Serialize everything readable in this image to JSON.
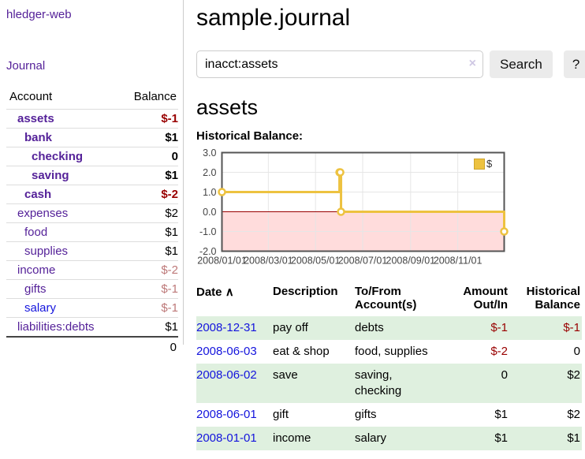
{
  "sidebar": {
    "app_title": "hledger-web",
    "journal_label": "Journal",
    "accounts_table": {
      "headers": {
        "account": "Account",
        "balance": "Balance"
      },
      "rows": [
        {
          "name": "assets",
          "indent": 1,
          "bold": true,
          "link_style": "purple",
          "balance": "$-1",
          "balance_style": "negative"
        },
        {
          "name": "bank",
          "indent": 2,
          "bold": true,
          "link_style": "purple",
          "balance": "$1",
          "balance_style": ""
        },
        {
          "name": "checking",
          "indent": 3,
          "bold": true,
          "link_style": "purple",
          "balance": "0",
          "balance_style": ""
        },
        {
          "name": "saving",
          "indent": 3,
          "bold": true,
          "link_style": "purple",
          "balance": "$1",
          "balance_style": ""
        },
        {
          "name": "cash",
          "indent": 2,
          "bold": true,
          "link_style": "purple",
          "balance": "$-2",
          "balance_style": "negative"
        },
        {
          "name": "expenses",
          "indent": 1,
          "bold": false,
          "link_style": "purple",
          "balance": "$2",
          "balance_style": ""
        },
        {
          "name": "food",
          "indent": 2,
          "bold": false,
          "link_style": "purple",
          "balance": "$1",
          "balance_style": ""
        },
        {
          "name": "supplies",
          "indent": 2,
          "bold": false,
          "link_style": "purple",
          "balance": "$1",
          "balance_style": ""
        },
        {
          "name": "income",
          "indent": 1,
          "bold": false,
          "link_style": "purple",
          "balance": "$-2",
          "balance_style": "negative-muted"
        },
        {
          "name": "gifts",
          "indent": 2,
          "bold": false,
          "link_style": "purple",
          "balance": "$-1",
          "balance_style": "negative-muted"
        },
        {
          "name": "salary",
          "indent": 2,
          "bold": false,
          "link_style": "blue",
          "balance": "$-1",
          "balance_style": "negative-muted"
        },
        {
          "name": "liabilities:debts",
          "indent": 1,
          "bold": false,
          "link_style": "purple",
          "balance": "$1",
          "balance_style": ""
        }
      ],
      "total": "0"
    }
  },
  "header": {
    "title": "sample.journal"
  },
  "search": {
    "value": "inacct:assets",
    "clear_icon": "×",
    "button_label": "Search",
    "help_label": "?"
  },
  "register_section": {
    "heading": "assets"
  },
  "chart_data": {
    "type": "line",
    "title": "Historical Balance:",
    "x_range": [
      "2008-01-01",
      "2008-12-31"
    ],
    "ylim": [
      -2,
      3
    ],
    "y_ticks": [
      "3.0",
      "2.0",
      "1.0",
      "0.0",
      "-1.0",
      "-2.0"
    ],
    "x_ticks": [
      "2008/01/01",
      "2008/03/01",
      "2008/05/01",
      "2008/07/01",
      "2008/09/01",
      "2008/11/01"
    ],
    "series": [
      {
        "name": "$",
        "color": "#edc240",
        "marker_fill": "#ffffff",
        "step": true,
        "points": [
          [
            "2008-01-01",
            1
          ],
          [
            "2008-06-01",
            2
          ],
          [
            "2008-06-02",
            2
          ],
          [
            "2008-06-03",
            0
          ],
          [
            "2008-12-31",
            -1
          ]
        ]
      }
    ],
    "legend": {
      "label": "$",
      "position": "top-right",
      "swatch_color": "#edc240"
    },
    "grid": {
      "gridline_color": "#e6e6e6",
      "border_color": "#545454",
      "zero_line_color": "#990000",
      "negative_region_color": "#ffdcdc",
      "tick_label_color": "#444444"
    }
  },
  "transactions": {
    "sort_icon": "∧",
    "headers": {
      "date": "Date",
      "description": "Description",
      "accounts": "To/From\nAccount(s)",
      "amount": "Amount\nOut/In",
      "balance": "Historical\nBalance"
    },
    "rows": [
      {
        "date": "2008-12-31",
        "description": "pay off",
        "accounts": "debts",
        "amount": "$-1",
        "amount_negative": true,
        "balance": "$-1",
        "balance_negative": true,
        "shaded": true
      },
      {
        "date": "2008-06-03",
        "description": "eat & shop",
        "accounts": "food, supplies",
        "amount": "$-2",
        "amount_negative": true,
        "balance": "0",
        "balance_negative": false,
        "shaded": false
      },
      {
        "date": "2008-06-02",
        "description": "save",
        "accounts": "saving,\nchecking",
        "amount": "0",
        "amount_negative": false,
        "balance": "$2",
        "balance_negative": false,
        "shaded": true
      },
      {
        "date": "2008-06-01",
        "description": "gift",
        "accounts": "gifts",
        "amount": "$1",
        "amount_negative": false,
        "balance": "$2",
        "balance_negative": false,
        "shaded": false
      },
      {
        "date": "2008-01-01",
        "description": "income",
        "accounts": "salary",
        "amount": "$1",
        "amount_negative": false,
        "balance": "$1",
        "balance_negative": false,
        "shaded": true
      }
    ]
  },
  "colors": {
    "link_purple": "#552299",
    "link_blue": "#1414dd",
    "negative": "#990000",
    "negative_muted": "#bd7878",
    "row_shade_green": "#dff0df"
  }
}
